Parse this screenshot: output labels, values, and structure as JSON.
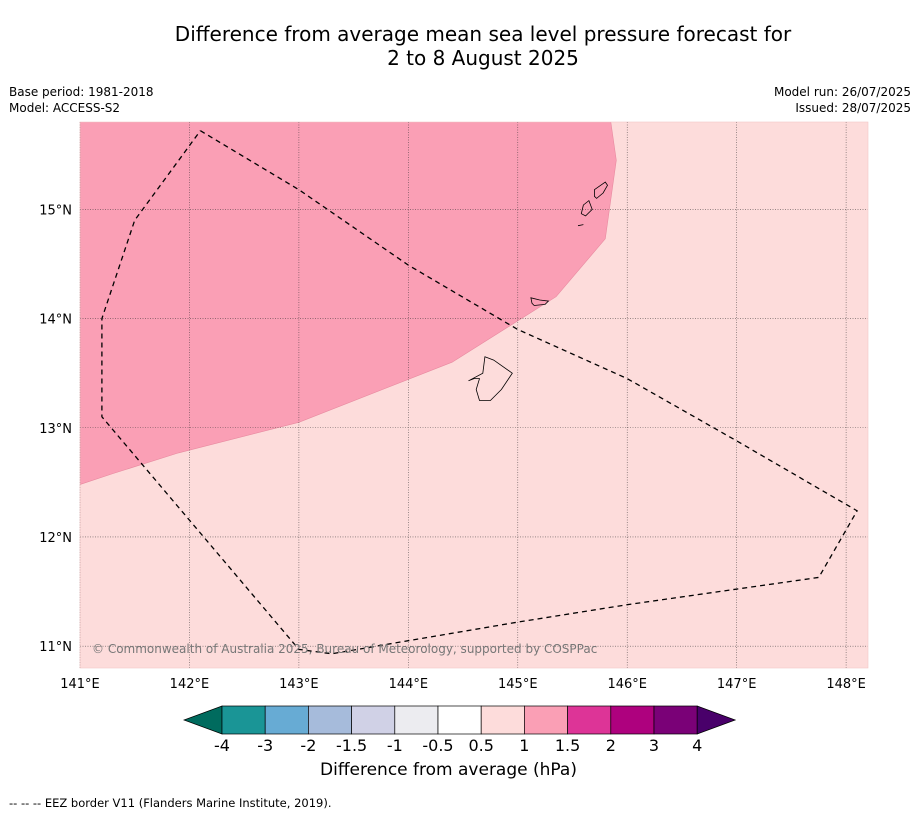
{
  "title": {
    "line1": "Difference from average mean sea level pressure forecast for",
    "line2": "2 to 8 August 2025"
  },
  "meta": {
    "base_period": "Base period: 1981-2018",
    "model": "Model: ACCESS-S2",
    "model_run": "Model run: 26/07/2025",
    "issued": "Issued: 28/07/2025"
  },
  "map": {
    "lon_range": [
      141,
      148.2
    ],
    "lat_range": [
      10.8,
      15.8
    ],
    "lon_ticks": [
      {
        "value": 141,
        "label": "141°E"
      },
      {
        "value": 142,
        "label": "142°E"
      },
      {
        "value": 143,
        "label": "143°E"
      },
      {
        "value": 144,
        "label": "144°E"
      },
      {
        "value": 145,
        "label": "145°E"
      },
      {
        "value": 146,
        "label": "146°E"
      },
      {
        "value": 147,
        "label": "147°E"
      },
      {
        "value": 148,
        "label": "148°E"
      }
    ],
    "lat_ticks": [
      {
        "value": 11,
        "label": "11°N"
      },
      {
        "value": 12,
        "label": "12°N"
      },
      {
        "value": 13,
        "label": "13°N"
      },
      {
        "value": 14,
        "label": "14°N"
      },
      {
        "value": 15,
        "label": "15°N"
      }
    ],
    "background_class": {
      "range": "0.5 to 1",
      "color": "#fddcdb"
    },
    "region_class": {
      "range": "1 to 1.5",
      "color": "#fa9fb5"
    },
    "region_boundary": [
      [
        141.0,
        15.8
      ],
      [
        145.85,
        15.8
      ],
      [
        145.9,
        15.45
      ],
      [
        145.8,
        14.73
      ],
      [
        145.35,
        14.2
      ],
      [
        144.4,
        13.6
      ],
      [
        143.0,
        13.05
      ],
      [
        141.9,
        12.77
      ],
      [
        141.3,
        12.58
      ],
      [
        141.0,
        12.48
      ]
    ],
    "eez_border": [
      [
        142.1,
        15.72
      ],
      [
        143.0,
        15.18
      ],
      [
        144.0,
        14.49
      ],
      [
        145.0,
        13.9
      ],
      [
        146.0,
        13.45
      ],
      [
        147.0,
        12.88
      ],
      [
        148.1,
        12.24
      ],
      [
        147.75,
        11.63
      ],
      [
        146.0,
        11.38
      ],
      [
        145.0,
        11.22
      ],
      [
        144.0,
        11.05
      ],
      [
        143.3,
        10.93
      ],
      [
        143.0,
        10.97
      ],
      [
        141.2,
        13.1
      ],
      [
        141.2,
        14.0
      ],
      [
        141.5,
        14.9
      ],
      [
        142.1,
        15.72
      ]
    ],
    "islands": [
      {
        "name": "Guam",
        "points": [
          [
            144.7,
            13.65
          ],
          [
            144.78,
            13.62
          ],
          [
            144.95,
            13.5
          ],
          [
            144.85,
            13.35
          ],
          [
            144.8,
            13.3
          ],
          [
            144.75,
            13.25
          ],
          [
            144.65,
            13.25
          ],
          [
            144.62,
            13.35
          ],
          [
            144.65,
            13.45
          ],
          [
            144.6,
            13.45
          ],
          [
            144.55,
            13.43
          ],
          [
            144.68,
            13.5
          ],
          [
            144.7,
            13.65
          ]
        ]
      },
      {
        "name": "Rota",
        "points": [
          [
            145.12,
            14.19
          ],
          [
            145.2,
            14.17
          ],
          [
            145.28,
            14.16
          ],
          [
            145.25,
            14.13
          ],
          [
            145.15,
            14.12
          ],
          [
            145.13,
            14.14
          ],
          [
            145.12,
            14.19
          ]
        ]
      },
      {
        "name": "Tinian",
        "points": [
          [
            145.6,
            15.04
          ],
          [
            145.65,
            15.08
          ],
          [
            145.68,
            15.0
          ],
          [
            145.62,
            14.94
          ],
          [
            145.58,
            14.96
          ],
          [
            145.6,
            15.04
          ]
        ]
      },
      {
        "name": "Saipan",
        "points": [
          [
            145.7,
            15.18
          ],
          [
            145.8,
            15.25
          ],
          [
            145.82,
            15.22
          ],
          [
            145.78,
            15.15
          ],
          [
            145.72,
            15.1
          ],
          [
            145.7,
            15.12
          ],
          [
            145.7,
            15.18
          ]
        ]
      },
      {
        "name": "Aguijan",
        "points": [
          [
            145.55,
            14.85
          ],
          [
            145.6,
            14.86
          ]
        ]
      }
    ],
    "copyright": "© Commonwealth of Australia 2025, Bureau of Meteorology, supported by COSPPac"
  },
  "colorbar": {
    "title": "Difference from average (hPa)",
    "colors": [
      "#006b5e",
      "#1a9596",
      "#67abd4",
      "#a6bbdb",
      "#d0d1e6",
      "#ececf0",
      "#ffffff",
      "#fddcdb",
      "#fa9fb5",
      "#dd3497",
      "#ae017e",
      "#7a0177",
      "#49006a"
    ],
    "tick_labels": [
      "-4",
      "-3",
      "-2",
      "-1.5",
      "-1",
      "-0.5",
      "0.5",
      "1",
      "1.5",
      "2",
      "3",
      "4"
    ]
  },
  "footer": "-- -- -- EEZ border V11 (Flanders Marine Institute, 2019)."
}
